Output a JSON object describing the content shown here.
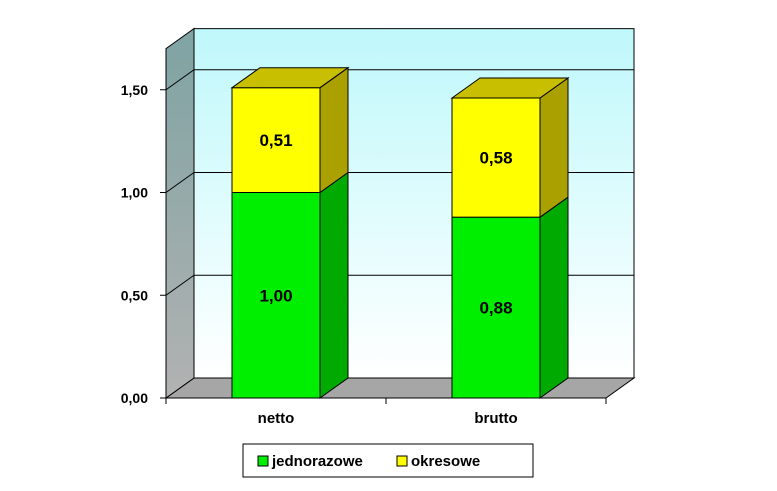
{
  "chart_data": {
    "type": "bar",
    "stacked": true,
    "three_d": true,
    "categories": [
      "netto",
      "brutto"
    ],
    "series": [
      {
        "name": "jednorazowe",
        "values": [
          1.0,
          0.88
        ],
        "labels": [
          "1,00",
          "0,88"
        ],
        "color": "#00ee00",
        "side_color": "#00aa00",
        "top_color": "#00cc00"
      },
      {
        "name": "okresowe",
        "values": [
          0.51,
          0.58
        ],
        "labels": [
          "0,51",
          "0,58"
        ],
        "color": "#ffff00",
        "side_color": "#aaa100",
        "top_color": "#c8bf00"
      }
    ],
    "yticks": [
      0.0,
      0.5,
      1.0,
      1.5
    ],
    "ytick_labels": [
      "0,00",
      "0,50",
      "1,00",
      "1,50"
    ],
    "ylim": [
      0,
      1.7
    ],
    "grid": true,
    "legend_position": "bottom",
    "back_wall_color": "#ccffff",
    "side_wall_color": "#9aaaaa",
    "floor_color": "#a6a6a6",
    "title": "",
    "xlabel": "",
    "ylabel": ""
  }
}
